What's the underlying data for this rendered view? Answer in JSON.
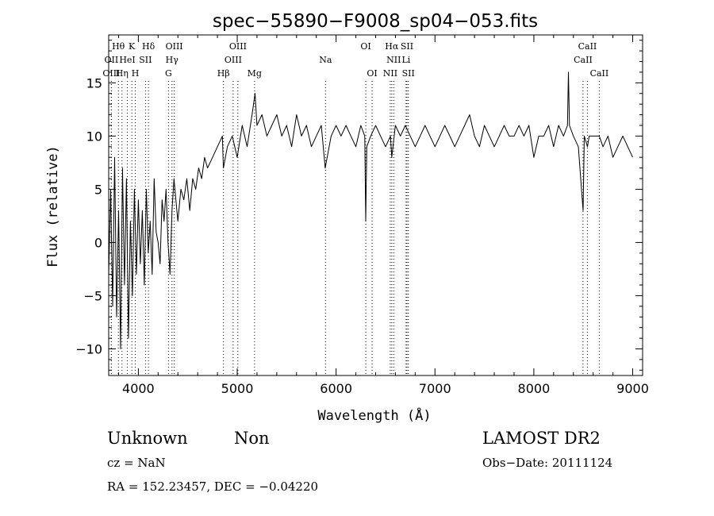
{
  "chart_data": {
    "type": "line",
    "title": "spec−55890−F9008_sp04−053.fits",
    "xlabel": "Wavelength (Å)",
    "ylabel": "Flux (relative)",
    "xlim": [
      3700,
      9100
    ],
    "ylim": [
      -12.5,
      19.5
    ],
    "xticks": [
      4000,
      5000,
      6000,
      7000,
      8000,
      9000
    ],
    "yticks": [
      -10,
      -5,
      0,
      5,
      10,
      15
    ],
    "xtick_labels": [
      "4000",
      "5000",
      "6000",
      "7000",
      "8000",
      "9000"
    ],
    "ytick_labels": [
      "−10",
      "−5",
      "0",
      "5",
      "10",
      "15"
    ],
    "grid": false,
    "series": [
      {
        "x": [
          3700,
          3720,
          3740,
          3760,
          3780,
          3800,
          3820,
          3840,
          3860,
          3880,
          3900,
          3920,
          3940,
          3960,
          3980,
          4000,
          4020,
          4040,
          4060,
          4080,
          4100,
          4120,
          4140,
          4160,
          4180,
          4200,
          4220,
          4240,
          4260,
          4280,
          4300,
          4320,
          4340,
          4360,
          4380,
          4400,
          4430,
          4460,
          4490,
          4520,
          4550,
          4580,
          4610,
          4640,
          4670,
          4700,
          4750,
          4800,
          4850,
          4860,
          4900,
          4950,
          5000,
          5050,
          5100,
          5150,
          5180,
          5200,
          5250,
          5300,
          5350,
          5400,
          5450,
          5500,
          5550,
          5600,
          5650,
          5700,
          5750,
          5800,
          5850,
          5890,
          5950,
          6000,
          6050,
          6100,
          6150,
          6200,
          6250,
          6290,
          6300,
          6310,
          6350,
          6400,
          6450,
          6500,
          6550,
          6563,
          6600,
          6650,
          6700,
          6750,
          6800,
          6850,
          6900,
          6950,
          7000,
          7050,
          7100,
          7150,
          7200,
          7250,
          7300,
          7350,
          7400,
          7450,
          7500,
          7550,
          7600,
          7650,
          7700,
          7750,
          7800,
          7850,
          7900,
          7950,
          8000,
          8050,
          8100,
          8150,
          8200,
          8250,
          8300,
          8340,
          8350,
          8360,
          8400,
          8450,
          8498,
          8510,
          8542,
          8560,
          8600,
          8662,
          8700,
          8750,
          8800,
          8850,
          8900,
          8950,
          9000
        ],
        "y": [
          -3,
          5,
          -6,
          8,
          -7,
          3,
          -10,
          7,
          -4,
          6,
          -9,
          2,
          -5,
          5,
          -3,
          4,
          -2,
          3,
          -4,
          5,
          -1,
          2,
          -3,
          6,
          1,
          0,
          -2,
          4,
          2,
          5,
          0,
          -3,
          3,
          6,
          4,
          2,
          5,
          4,
          6,
          3,
          6,
          5,
          7,
          6,
          8,
          7,
          8,
          9,
          10,
          7,
          9,
          10,
          8,
          11,
          9,
          12,
          14,
          11,
          12,
          10,
          11,
          12,
          10,
          11,
          9,
          12,
          10,
          11,
          9,
          10,
          11,
          7,
          10,
          11,
          10,
          11,
          10,
          9,
          11,
          10,
          2,
          9,
          10,
          11,
          10,
          9,
          10,
          8,
          11,
          10,
          11,
          10,
          9,
          10,
          11,
          10,
          9,
          10,
          11,
          10,
          9,
          10,
          11,
          12,
          10,
          9,
          11,
          10,
          9,
          10,
          11,
          10,
          10,
          11,
          10,
          11,
          8,
          10,
          10,
          11,
          9,
          11,
          10,
          11,
          16,
          11,
          10,
          9,
          3,
          10,
          9,
          10,
          10,
          10,
          9,
          10,
          8,
          9,
          10,
          9,
          8
        ]
      }
    ],
    "lines": [
      {
        "name": "Hθ",
        "wavelength": 3798,
        "row": 1
      },
      {
        "name": "OII",
        "wavelength": 3727,
        "row": 2
      },
      {
        "name": "OIII",
        "wavelength": 3727,
        "row": 3
      },
      {
        "name": "K",
        "wavelength": 3934,
        "row": 1
      },
      {
        "name": "HeI",
        "wavelength": 3889,
        "row": 2
      },
      {
        "name": "Hη",
        "wavelength": 3835,
        "row": 3
      },
      {
        "name": "Hδ",
        "wavelength": 4102,
        "row": 1
      },
      {
        "name": "SII",
        "wavelength": 4072,
        "row": 2
      },
      {
        "name": "H",
        "wavelength": 3969,
        "row": 3
      },
      {
        "name": "OIII",
        "wavelength": 4363,
        "row": 1
      },
      {
        "name": "Hγ",
        "wavelength": 4340,
        "row": 2
      },
      {
        "name": "G",
        "wavelength": 4305,
        "row": 3
      },
      {
        "name": "Hβ",
        "wavelength": 4861,
        "row": 3
      },
      {
        "name": "OIII",
        "wavelength": 5007,
        "row": 1
      },
      {
        "name": "OIII",
        "wavelength": 4959,
        "row": 2
      },
      {
        "name": "Mg",
        "wavelength": 5175,
        "row": 3
      },
      {
        "name": "Na",
        "wavelength": 5893,
        "row": 2
      },
      {
        "name": "OI",
        "wavelength": 6300,
        "row": 1
      },
      {
        "name": "OI",
        "wavelength": 6364,
        "row": 3
      },
      {
        "name": "Hα",
        "wavelength": 6563,
        "row": 1
      },
      {
        "name": "NII",
        "wavelength": 6583,
        "row": 2
      },
      {
        "name": "NII",
        "wavelength": 6548,
        "row": 3
      },
      {
        "name": "SII",
        "wavelength": 6717,
        "row": 1
      },
      {
        "name": "Li",
        "wavelength": 6708,
        "row": 2
      },
      {
        "name": "SII",
        "wavelength": 6731,
        "row": 3
      },
      {
        "name": "CaII",
        "wavelength": 8542,
        "row": 1
      },
      {
        "name": "CaII",
        "wavelength": 8498,
        "row": 2
      },
      {
        "name": "CaII",
        "wavelength": 8662,
        "row": 3
      }
    ]
  },
  "footer": {
    "classification": "Unknown",
    "subclass": "Non",
    "survey": "LAMOST DR2",
    "cz": "cz = NaN",
    "obs_date": "Obs−Date: 20111124",
    "coords": "RA = 152.23457, DEC =  −0.04220"
  }
}
